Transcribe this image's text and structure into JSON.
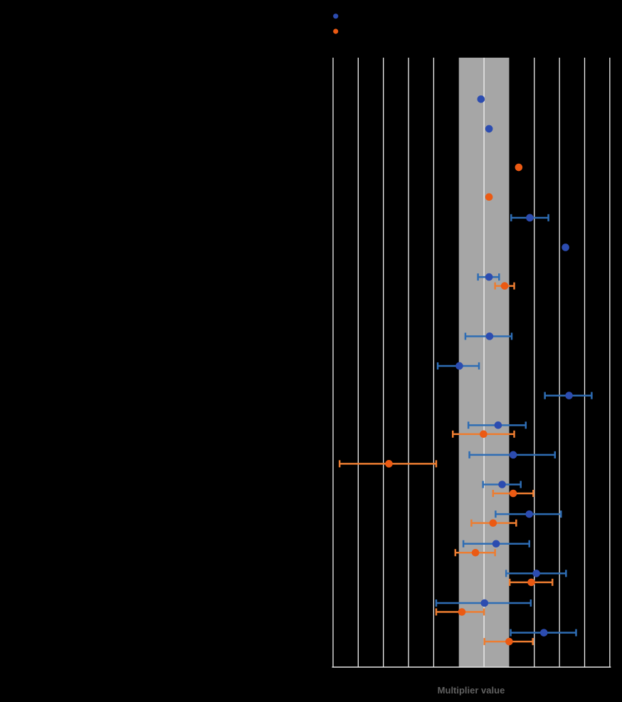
{
  "chart_data": {
    "type": "scatter",
    "subtype": "forest-plot-dot-whisker",
    "title": "",
    "xlabel": "Multiplier value",
    "ylabel": "",
    "x_axis": {
      "min": 0.7,
      "max": 1.25,
      "gridline_step": 0.05,
      "gridline_count": 12,
      "tick_labels_visible": false,
      "grid": true
    },
    "reference_band": {
      "from": 0.95,
      "to": 1.05
    },
    "category_count": 19,
    "category_labels_visible": false,
    "legend": {
      "position": "top-left-of-plot",
      "labels_visible": false,
      "entries": [
        {
          "series": "blue"
        },
        {
          "series": "orange"
        }
      ]
    },
    "points": [
      {
        "row": 0,
        "series": "blue",
        "value": 0.994,
        "ci_low": null,
        "ci_high": null
      },
      {
        "row": 1,
        "series": "blue",
        "value": 1.01,
        "ci_low": null,
        "ci_high": null
      },
      {
        "row": 2,
        "series": "orange",
        "value": 1.069,
        "ci_low": null,
        "ci_high": null
      },
      {
        "row": 3,
        "series": "orange",
        "value": 1.01,
        "ci_low": null,
        "ci_high": null
      },
      {
        "row": 4,
        "series": "blue",
        "value": 1.091,
        "ci_low": 1.054,
        "ci_high": 1.128
      },
      {
        "row": 5,
        "series": "blue",
        "value": 1.162,
        "ci_low": null,
        "ci_high": null
      },
      {
        "row": 6,
        "series": "blue",
        "value": 1.01,
        "ci_low": 0.988,
        "ci_high": 1.03
      },
      {
        "row": 6,
        "series": "orange",
        "value": 1.041,
        "ci_low": 1.022,
        "ci_high": 1.06
      },
      {
        "row": 8,
        "series": "blue",
        "value": 1.011,
        "ci_low": 0.963,
        "ci_high": 1.055
      },
      {
        "row": 9,
        "series": "blue",
        "value": 0.951,
        "ci_low": 0.908,
        "ci_high": 0.99
      },
      {
        "row": 10,
        "series": "blue",
        "value": 1.169,
        "ci_low": 1.121,
        "ci_high": 1.214
      },
      {
        "row": 11,
        "series": "blue",
        "value": 1.028,
        "ci_low": 0.969,
        "ci_high": 1.083
      },
      {
        "row": 11,
        "series": "orange",
        "value": 0.999,
        "ci_low": 0.938,
        "ci_high": 1.06
      },
      {
        "row": 12,
        "series": "blue",
        "value": 1.058,
        "ci_low": 0.971,
        "ci_high": 1.141
      },
      {
        "row": 12,
        "series": "orange",
        "value": 0.811,
        "ci_low": 0.713,
        "ci_high": 0.905
      },
      {
        "row": 13,
        "series": "blue",
        "value": 1.036,
        "ci_low": 0.998,
        "ci_high": 1.073
      },
      {
        "row": 13,
        "series": "orange",
        "value": 1.058,
        "ci_low": 1.018,
        "ci_high": 1.098
      },
      {
        "row": 14,
        "series": "blue",
        "value": 1.09,
        "ci_low": 1.023,
        "ci_high": 1.153
      },
      {
        "row": 14,
        "series": "orange",
        "value": 1.018,
        "ci_low": 0.975,
        "ci_high": 1.064
      },
      {
        "row": 15,
        "series": "blue",
        "value": 1.024,
        "ci_low": 0.959,
        "ci_high": 1.09
      },
      {
        "row": 15,
        "series": "orange",
        "value": 0.983,
        "ci_low": 0.943,
        "ci_high": 1.022
      },
      {
        "row": 16,
        "series": "blue",
        "value": 1.104,
        "ci_low": 1.044,
        "ci_high": 1.163
      },
      {
        "row": 16,
        "series": "orange",
        "value": 1.094,
        "ci_low": 1.051,
        "ci_high": 1.136
      },
      {
        "row": 17,
        "series": "blue",
        "value": 1.001,
        "ci_low": 0.905,
        "ci_high": 1.093
      },
      {
        "row": 17,
        "series": "orange",
        "value": 0.956,
        "ci_low": 0.905,
        "ci_high": 1.0
      },
      {
        "row": 18,
        "series": "blue",
        "value": 1.119,
        "ci_low": 1.053,
        "ci_high": 1.183
      },
      {
        "row": 18,
        "series": "orange",
        "value": 1.05,
        "ci_low": 1.001,
        "ci_high": 1.097
      }
    ],
    "colors": {
      "background": "#000000",
      "blue_marker": "#2C4CB0",
      "blue_errorbar": "#2E6DB4",
      "orange_marker": "#EB5A13",
      "orange_errorbar": "#ED7D31",
      "reference_band": "#A6A6A6",
      "gridline": "#F2F2F2",
      "axis_line": "#E6E6E6",
      "axis_title_text": "#606060"
    }
  }
}
